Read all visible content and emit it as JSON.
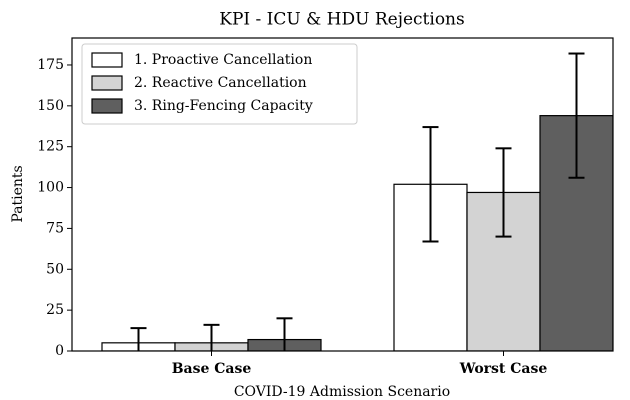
{
  "chart_data": {
    "type": "bar",
    "title": "KPI - ICU & HDU Rejections",
    "x_label": "COVID-19 Admission Scenario",
    "y_label": "Patients",
    "categories": [
      "Base Case",
      "Worst Case"
    ],
    "series": [
      {
        "name": "1. Proactive Cancellation",
        "color": "#ffffff",
        "values": [
          5,
          102
        ],
        "errors": [
          9,
          35
        ]
      },
      {
        "name": "2. Reactive Cancellation",
        "color": "#d3d3d3",
        "values": [
          5,
          97
        ],
        "errors": [
          11,
          27
        ]
      },
      {
        "name": "3. Ring-Fencing Capacity",
        "color": "#5f5f5f",
        "values": [
          7,
          144
        ],
        "errors": [
          13,
          38
        ]
      }
    ],
    "ylim": [
      0,
      191.5
    ],
    "yticks": [
      0,
      25,
      50,
      75,
      100,
      125,
      150,
      175
    ],
    "grid": false,
    "legend": "upper-left"
  }
}
